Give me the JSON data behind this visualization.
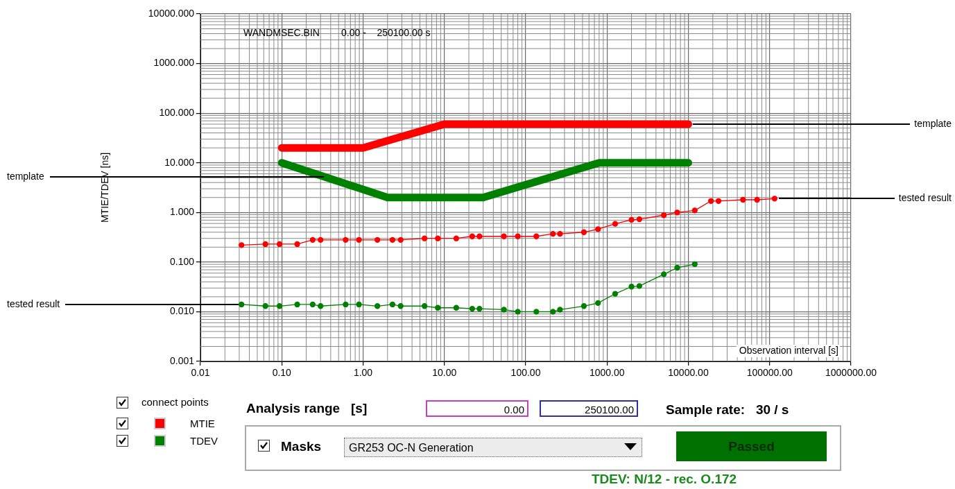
{
  "chart_data": {
    "type": "line",
    "ylabel": "MTIE/TDEV [ns]",
    "xlabel": "Observation interval [s]",
    "log": "xy",
    "grid": true,
    "legend": "bottom left",
    "xlim": [
      0.01,
      1000000
    ],
    "ylim": [
      0.001,
      10000
    ],
    "xticks": [
      {
        "value": 0.01,
        "label": "0.01"
      },
      {
        "value": 0.1,
        "label": "0.10"
      },
      {
        "value": 1,
        "label": "1.00"
      },
      {
        "value": 10,
        "label": "10.00"
      },
      {
        "value": 100,
        "label": "100.00"
      },
      {
        "value": 1000,
        "label": "1000.00"
      },
      {
        "value": 10000,
        "label": "10000.00"
      },
      {
        "value": 100000,
        "label": "100000.00"
      },
      {
        "value": 1000000,
        "label": "1000000.00"
      }
    ],
    "yticks": [
      {
        "value": 0.001,
        "label": "0.001"
      },
      {
        "value": 0.01,
        "label": "0.010"
      },
      {
        "value": 0.1,
        "label": "0.100"
      },
      {
        "value": 1,
        "label": "1.000"
      },
      {
        "value": 10,
        "label": "10.000"
      },
      {
        "value": 100,
        "label": "100.000"
      },
      {
        "value": 1000,
        "label": "1000.000"
      },
      {
        "value": 10000,
        "label": "10000.000"
      }
    ],
    "series": [
      {
        "color": "#ff0000",
        "marker": "none",
        "x": [
          0.1,
          1,
          10,
          10000
        ],
        "values": [
          20,
          20,
          60,
          60
        ]
      },
      {
        "color": "#008000",
        "marker": "none",
        "x": [
          0.1,
          2,
          30,
          800,
          10000
        ],
        "values": [
          10,
          2,
          2,
          10,
          10
        ]
      },
      {
        "name": "MTIE",
        "color": "#ff0000",
        "marker": "circle",
        "x": [
          0.032,
          0.063,
          0.094,
          0.155,
          0.24,
          0.3,
          0.61,
          0.89,
          1.5,
          2.3,
          2.9,
          5.7,
          8.3,
          14,
          22,
          27,
          54,
          80,
          135,
          216,
          264,
          520,
          775,
          1260,
          2000,
          2500,
          5000,
          7300,
          12000,
          19000,
          23500,
          47000,
          70000,
          115000
        ],
        "values": [
          0.22,
          0.23,
          0.23,
          0.23,
          0.28,
          0.28,
          0.28,
          0.28,
          0.28,
          0.28,
          0.28,
          0.3,
          0.3,
          0.3,
          0.33,
          0.33,
          0.33,
          0.33,
          0.33,
          0.37,
          0.37,
          0.4,
          0.46,
          0.59,
          0.71,
          0.73,
          0.88,
          1.0,
          1.1,
          1.7,
          1.7,
          1.8,
          1.8,
          1.9
        ]
      },
      {
        "name": "TDEV",
        "color": "#008000",
        "marker": "circle",
        "x": [
          0.032,
          0.063,
          0.094,
          0.155,
          0.24,
          0.3,
          0.61,
          0.89,
          1.5,
          2.3,
          2.9,
          5.7,
          8.3,
          14,
          22,
          27,
          54,
          80,
          135,
          216,
          264,
          520,
          775,
          1260,
          2000,
          2500,
          5000,
          7300,
          12000
        ],
        "values": [
          0.014,
          0.013,
          0.013,
          0.014,
          0.014,
          0.013,
          0.014,
          0.014,
          0.013,
          0.014,
          0.013,
          0.013,
          0.012,
          0.012,
          0.0115,
          0.0115,
          0.011,
          0.01,
          0.01,
          0.01,
          0.011,
          0.013,
          0.015,
          0.023,
          0.032,
          0.033,
          0.057,
          0.077,
          0.091
        ]
      }
    ],
    "annotations": [
      "WANDMSEC.BIN        0.00 -    250100.00 s",
      "template",
      "template",
      "tested result",
      "tested result",
      "connect points",
      "Analysis range   [s]",
      "0.00",
      "250100.00",
      "Sample rate:   30 / s",
      "Masks",
      "GR253 OC-N Generation",
      "Passed",
      "TDEV: N/12 - rec. O.172"
    ]
  }
}
